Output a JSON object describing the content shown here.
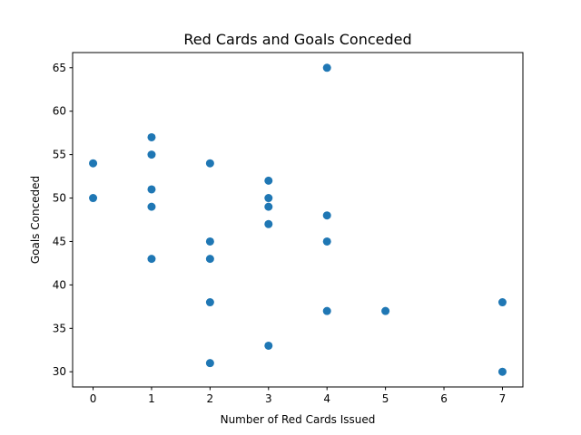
{
  "chart_data": {
    "type": "scatter",
    "title": "Red Cards and Goals Conceded",
    "xlabel": "Number of Red Cards Issued",
    "ylabel": "Goals Conceded",
    "xlim": [
      -0.35,
      7.35
    ],
    "ylim": [
      28.25,
      66.75
    ],
    "xticks": [
      "0",
      "1",
      "2",
      "3",
      "4",
      "5",
      "6",
      "7"
    ],
    "yticks": [
      "30",
      "35",
      "40",
      "45",
      "50",
      "55",
      "60",
      "65"
    ],
    "grid": false,
    "marker_color": "#1f77b4",
    "points": [
      {
        "x": 0,
        "y": 54
      },
      {
        "x": 0,
        "y": 50
      },
      {
        "x": 1,
        "y": 57
      },
      {
        "x": 1,
        "y": 55
      },
      {
        "x": 1,
        "y": 51
      },
      {
        "x": 1,
        "y": 49
      },
      {
        "x": 1,
        "y": 43
      },
      {
        "x": 2,
        "y": 54
      },
      {
        "x": 2,
        "y": 45
      },
      {
        "x": 2,
        "y": 43
      },
      {
        "x": 2,
        "y": 38
      },
      {
        "x": 2,
        "y": 31
      },
      {
        "x": 3,
        "y": 52
      },
      {
        "x": 3,
        "y": 50
      },
      {
        "x": 3,
        "y": 49
      },
      {
        "x": 3,
        "y": 47
      },
      {
        "x": 3,
        "y": 33
      },
      {
        "x": 4,
        "y": 65
      },
      {
        "x": 4,
        "y": 48
      },
      {
        "x": 4,
        "y": 45
      },
      {
        "x": 4,
        "y": 37
      },
      {
        "x": 5,
        "y": 37
      },
      {
        "x": 7,
        "y": 38
      },
      {
        "x": 7,
        "y": 30
      }
    ]
  }
}
